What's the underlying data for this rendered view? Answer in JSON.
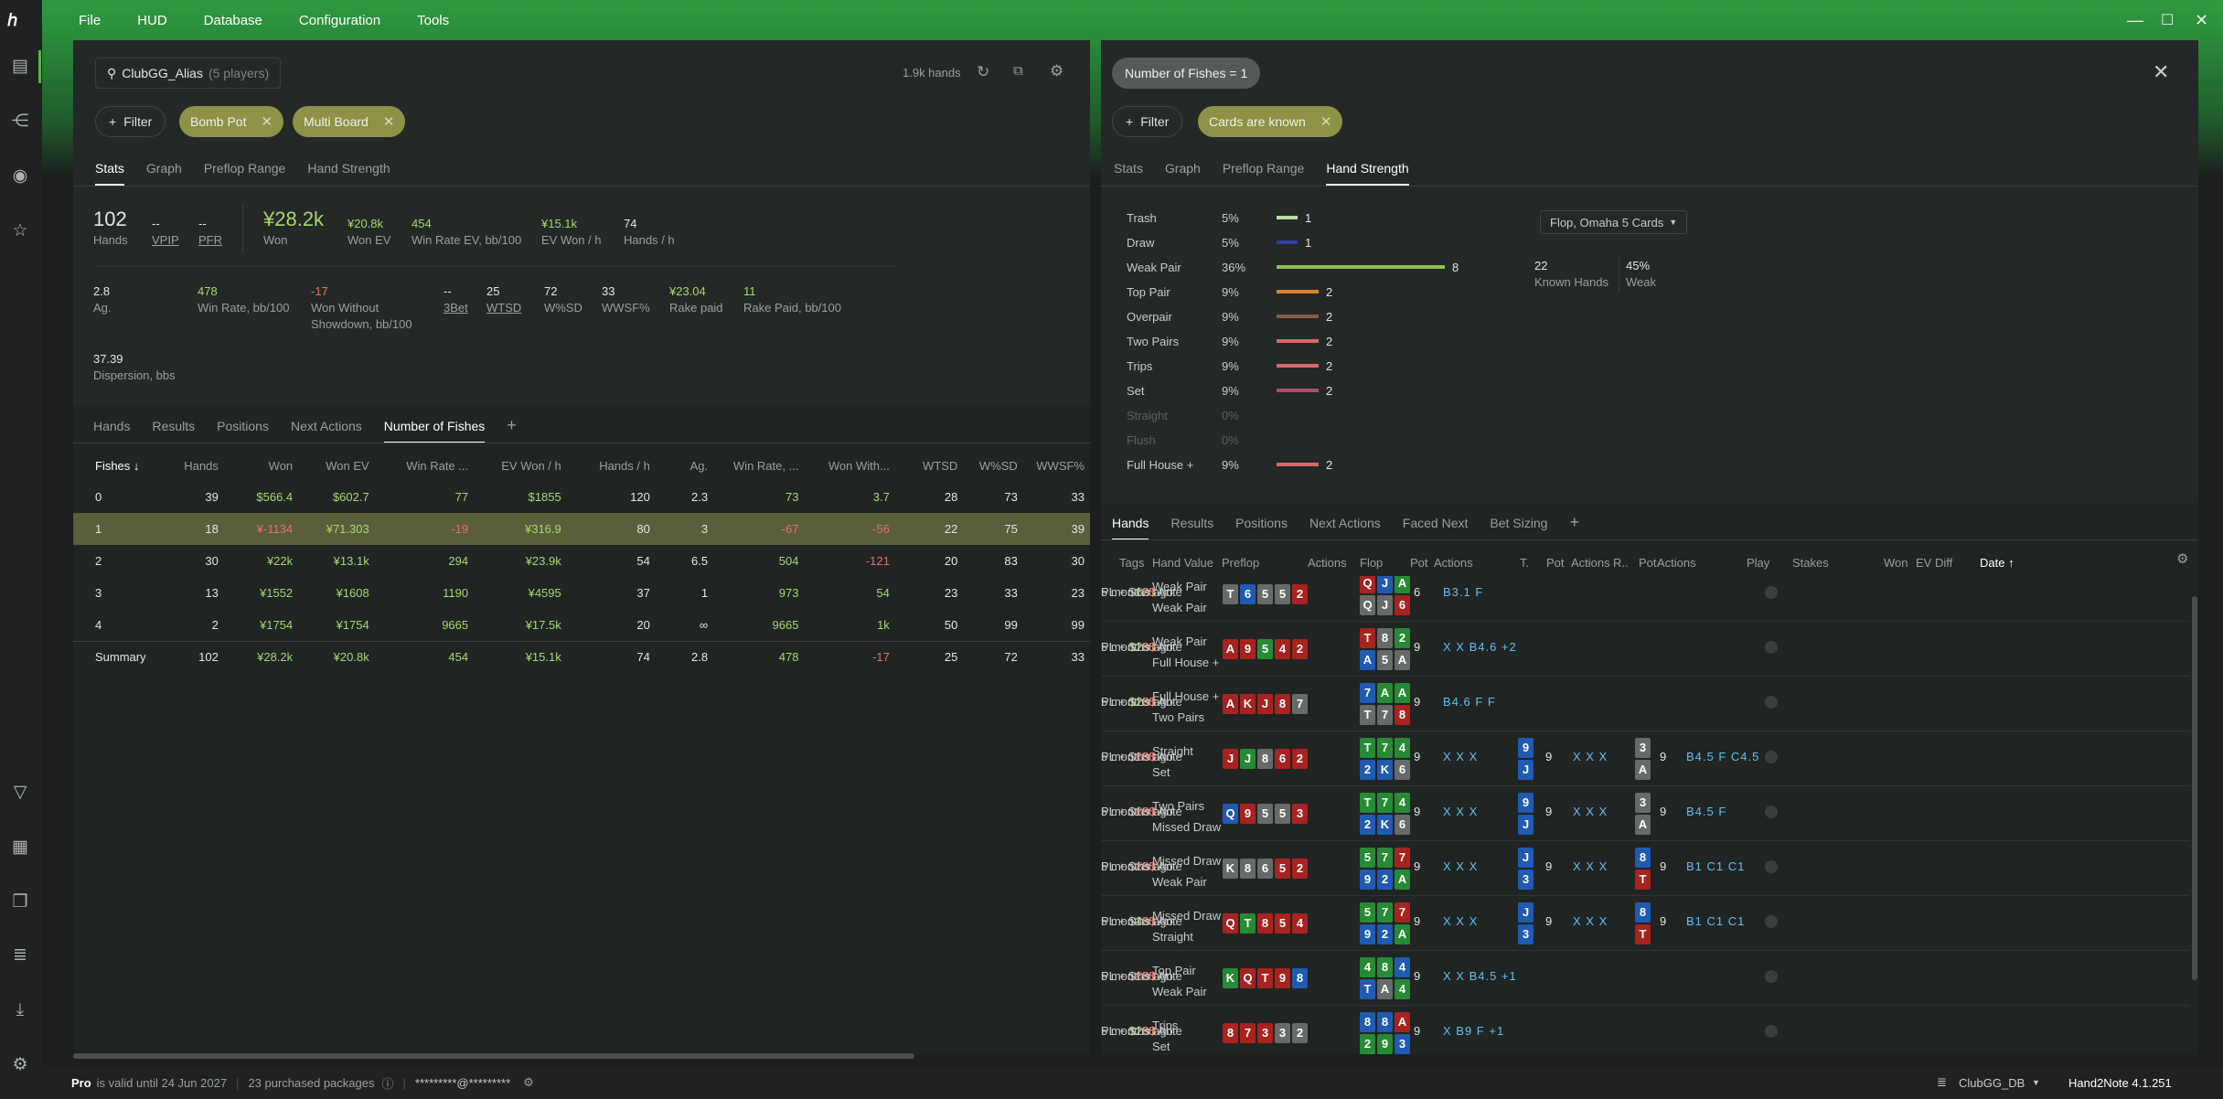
{
  "menu": [
    "File",
    "HUD",
    "Database",
    "Configuration",
    "Tools"
  ],
  "colors": {
    "accent": "#2b8e3c",
    "chip": "#8d9246",
    "positive": "#a8d86e",
    "negative": "#e4726b"
  },
  "left": {
    "player": "ClubGG_Alias",
    "player_count": "(5 players)",
    "hands_count": "1.9k hands",
    "filter_label": "Filter",
    "chips": [
      "Bomb Pot",
      "Multi Board"
    ],
    "tabs": [
      "Stats",
      "Graph",
      "Preflop Range",
      "Hand Strength"
    ],
    "stats1": {
      "hands_v": "102",
      "hands_l": "Hands",
      "vpip_v": "--",
      "vpip_l": "VPIP",
      "pfr_v": "--",
      "pfr_l": "PFR",
      "won_v": "¥28.2k",
      "won_l": "Won",
      "wonev_v": "¥20.8k",
      "wonev_l": "Won EV",
      "wrev_v": "454",
      "wrev_l": "Win Rate EV, bb/100",
      "evwon_v": "¥15.1k",
      "evwon_l": "EV Won / h",
      "hph_v": "74",
      "hph_l": "Hands / h"
    },
    "stats2": {
      "ag_v": "2.8",
      "ag_l": "Ag.",
      "wr_v": "478",
      "wr_l": "Win Rate, bb/100",
      "wwsd_v": "-17",
      "wwsd_l1": "Won Without",
      "wwsd_l2": "Showdown, bb/100",
      "bet3_v": "--",
      "bet3_l": "3Bet",
      "wtsd_v": "25",
      "wtsd_l": "WTSD",
      "wsd_v": "72",
      "wsd_l": "W%SD",
      "wwsf_v": "33",
      "wwsf_l": "WWSF%",
      "rake_v": "¥23.04",
      "rake_l": "Rake paid",
      "rakebb_v": "11",
      "rakebb_l": "Rake Paid, bb/100"
    },
    "stats3": {
      "disp_v": "37.39",
      "disp_l": "Dispersion, bbs"
    },
    "tabs2": [
      "Hands",
      "Results",
      "Positions",
      "Next Actions",
      "Number of Fishes"
    ],
    "table": {
      "headers": [
        "Fishes ↓",
        "Hands",
        "Won",
        "Won EV",
        "Win Rate ...",
        "EV Won / h",
        "Hands / h",
        "Ag.",
        "Win Rate, ...",
        "Won With...",
        "WTSD",
        "W%SD",
        "WWSF%"
      ],
      "rows": [
        [
          "0",
          "39",
          "$566.4",
          "$602.7",
          "77",
          "$1855",
          "120",
          "2.3",
          "73",
          "3.7",
          "28",
          "73",
          "33"
        ],
        [
          "1",
          "18",
          "¥-1134",
          "¥71.303",
          "-19",
          "¥316.9",
          "80",
          "3",
          "-67",
          "-56",
          "22",
          "75",
          "39"
        ],
        [
          "2",
          "30",
          "¥22k",
          "¥13.1k",
          "294",
          "¥23.9k",
          "54",
          "6.5",
          "504",
          "-121",
          "20",
          "83",
          "30"
        ],
        [
          "3",
          "13",
          "¥1552",
          "¥1608",
          "1190",
          "¥4595",
          "37",
          "1",
          "973",
          "54",
          "23",
          "33",
          "23"
        ],
        [
          "4",
          "2",
          "¥1754",
          "¥1754",
          "9665",
          "¥17.5k",
          "20",
          "∞",
          "9665",
          "1k",
          "50",
          "99",
          "99"
        ],
        [
          "Summary",
          "102",
          "¥28.2k",
          "¥20.8k",
          "454",
          "¥15.1k",
          "74",
          "2.8",
          "478",
          "-17",
          "25",
          "72",
          "33"
        ]
      ]
    }
  },
  "right": {
    "top_chip": "Number of Fishes = 1",
    "filter_label": "Filter",
    "chip": "Cards are known",
    "tabs": [
      "Stats",
      "Graph",
      "Preflop Range",
      "Hand Strength"
    ],
    "hs": [
      {
        "name": "Trash",
        "pct": "5%",
        "count": "1",
        "frac": 0.125,
        "color": "#b8dca8"
      },
      {
        "name": "Draw",
        "pct": "5%",
        "count": "1",
        "frac": 0.125,
        "color": "#2e3f9e"
      },
      {
        "name": "Weak Pair",
        "pct": "36%",
        "count": "8",
        "frac": 1,
        "color": "#8bc34a"
      },
      {
        "name": "Top Pair",
        "pct": "9%",
        "count": "2",
        "frac": 0.25,
        "color": "#d9822b"
      },
      {
        "name": "Overpair",
        "pct": "9%",
        "count": "2",
        "frac": 0.25,
        "color": "#8a5a50"
      },
      {
        "name": "Two Pairs",
        "pct": "9%",
        "count": "2",
        "frac": 0.25,
        "color": "#d46a6a"
      },
      {
        "name": "Trips",
        "pct": "9%",
        "count": "2",
        "frac": 0.25,
        "color": "#d46a6a"
      },
      {
        "name": "Set",
        "pct": "9%",
        "count": "2",
        "frac": 0.25,
        "color": "#b04a7a"
      },
      {
        "name": "Straight",
        "pct": "0%",
        "count": "",
        "frac": 0,
        "color": "#666"
      },
      {
        "name": "Flush",
        "pct": "0%",
        "count": "",
        "frac": 0,
        "color": "#666"
      },
      {
        "name": "Full House +",
        "pct": "9%",
        "count": "2",
        "frac": 0.25,
        "color": "#d46a6a"
      }
    ],
    "dropdown": "Flop, Omaha 5 Cards",
    "known_v": "22",
    "known_l": "Known Hands",
    "weak_v": "45%",
    "weak_l": "Weak",
    "tabs2": [
      "Hands",
      "Results",
      "Positions",
      "Next Actions",
      "Faced Next",
      "Bet Sizing"
    ],
    "hand_headers": [
      "Tags",
      "Hand Value",
      "Preflop",
      "Actions",
      "Flop",
      "Pot",
      "Actions",
      "T.",
      "Pot",
      "Actions",
      "R..",
      "Pot",
      "Actions",
      "Play",
      "Stakes",
      "Won",
      "EV Diff",
      "Date ↑"
    ],
    "hands": [
      {
        "hv": [
          "Weak Pair",
          "Weak Pair"
        ],
        "pre": [
          [
            "T",
            "x"
          ],
          [
            "6",
            "b"
          ],
          [
            "5",
            "x"
          ],
          [
            "5",
            "x"
          ],
          [
            "2",
            "r"
          ]
        ],
        "flop": [
          [
            "Q",
            "r"
          ],
          [
            "J",
            "b"
          ],
          [
            "A",
            "g"
          ],
          [
            "Q",
            "x"
          ],
          [
            "J",
            "x"
          ],
          [
            "6",
            "r"
          ]
        ],
        "pot": "6",
        "fa": "B3.1 F",
        "ta": "",
        "tp": "",
        "turn": [],
        "ra": "",
        "rp": "",
        "river": [],
        "stake": "PL + $120 Ante",
        "won": "60$",
        "wonc": "g",
        "ev": "0$",
        "date": "5 months ago"
      },
      {
        "hv": [
          "Weak Pair",
          "Full House +"
        ],
        "pre": [
          [
            "A",
            "r"
          ],
          [
            "9",
            "r"
          ],
          [
            "5",
            "g"
          ],
          [
            "4",
            "r"
          ],
          [
            "2",
            "r"
          ]
        ],
        "flop": [
          [
            "T",
            "r"
          ],
          [
            "8",
            "x"
          ],
          [
            "2",
            "g"
          ],
          [
            "A",
            "b"
          ],
          [
            "5",
            "x"
          ],
          [
            "A",
            "x"
          ]
        ],
        "pot": "9",
        "fa": "X X B4.6 +2",
        "ta": "",
        "tp": "",
        "turn": [],
        "ra": "",
        "rp": "",
        "river": [],
        "stake": "PL + $180 Ante",
        "won": "120$",
        "wonc": "g",
        "ev": "0$",
        "date": "5 months ago"
      },
      {
        "hv": [
          "Full House +",
          "Two Pairs"
        ],
        "pre": [
          [
            "A",
            "r"
          ],
          [
            "K",
            "r"
          ],
          [
            "J",
            "r"
          ],
          [
            "8",
            "r"
          ],
          [
            "7",
            "x"
          ]
        ],
        "flop": [
          [
            "7",
            "b"
          ],
          [
            "A",
            "g"
          ],
          [
            "A",
            "g"
          ],
          [
            "T",
            "x"
          ],
          [
            "7",
            "x"
          ],
          [
            "8",
            "r"
          ]
        ],
        "pot": "9",
        "fa": "B4.6 F F",
        "ta": "",
        "tp": "",
        "turn": [],
        "ra": "",
        "rp": "",
        "river": [],
        "stake": "PL + $180 Ante",
        "won": "120$",
        "wonc": "g",
        "ev": "0$",
        "date": "5 months ago"
      },
      {
        "hv": [
          "Straight",
          "Set"
        ],
        "pre": [
          [
            "J",
            "r"
          ],
          [
            "J",
            "g"
          ],
          [
            "8",
            "x"
          ],
          [
            "6",
            "r"
          ],
          [
            "2",
            "r"
          ]
        ],
        "flop": [
          [
            "T",
            "g"
          ],
          [
            "7",
            "g"
          ],
          [
            "4",
            "g"
          ],
          [
            "2",
            "b"
          ],
          [
            "K",
            "b"
          ],
          [
            "6",
            "x"
          ]
        ],
        "pot": "9",
        "fa": "X X X",
        "turn": [
          [
            "9",
            "b"
          ],
          [
            "J",
            "b"
          ]
        ],
        "tp": "9",
        "ta": "X X X",
        "river": [
          [
            "3",
            "x"
          ],
          [
            "A",
            "x"
          ]
        ],
        "rp": "9",
        "ra": "B4.5 F C4.5",
        "stake": "PL + $180 Ante",
        "won": "-60$",
        "wonc": "r",
        "ev": "0$",
        "date": "5 months ago"
      },
      {
        "hv": [
          "Two Pairs",
          "Missed Draw"
        ],
        "pre": [
          [
            "Q",
            "b"
          ],
          [
            "9",
            "r"
          ],
          [
            "5",
            "x"
          ],
          [
            "5",
            "x"
          ],
          [
            "3",
            "r"
          ]
        ],
        "flop": [
          [
            "T",
            "g"
          ],
          [
            "7",
            "g"
          ],
          [
            "4",
            "g"
          ],
          [
            "2",
            "b"
          ],
          [
            "K",
            "b"
          ],
          [
            "6",
            "x"
          ]
        ],
        "pot": "9",
        "fa": "X X X",
        "turn": [
          [
            "9",
            "b"
          ],
          [
            "J",
            "b"
          ]
        ],
        "tp": "9",
        "ta": "X X X",
        "river": [
          [
            "3",
            "x"
          ],
          [
            "A",
            "x"
          ]
        ],
        "rp": "9",
        "ra": "B4.5 F",
        "stake": "PL + $180 Ante",
        "won": "-60$",
        "wonc": "r",
        "ev": "0$",
        "date": "5 months ago"
      },
      {
        "hv": [
          "Missed Draw",
          "Weak Pair"
        ],
        "pre": [
          [
            "K",
            "x"
          ],
          [
            "8",
            "x"
          ],
          [
            "6",
            "x"
          ],
          [
            "5",
            "r"
          ],
          [
            "2",
            "r"
          ]
        ],
        "flop": [
          [
            "5",
            "g"
          ],
          [
            "7",
            "g"
          ],
          [
            "7",
            "r"
          ],
          [
            "9",
            "b"
          ],
          [
            "2",
            "b"
          ],
          [
            "A",
            "g"
          ]
        ],
        "pot": "9",
        "fa": "X X X",
        "turn": [
          [
            "J",
            "b"
          ],
          [
            "3",
            "b"
          ]
        ],
        "tp": "9",
        "ta": "X X X",
        "river": [
          [
            "8",
            "b"
          ],
          [
            "T",
            "r"
          ]
        ],
        "rp": "9",
        "ra": "B1 C1 C1",
        "stake": "PL + $180 Ante",
        "won": "-80$",
        "wonc": "r",
        "ev": "0$",
        "date": "5 months ago"
      },
      {
        "hv": [
          "Missed Draw",
          "Straight"
        ],
        "pre": [
          [
            "Q",
            "r"
          ],
          [
            "T",
            "g"
          ],
          [
            "8",
            "r"
          ],
          [
            "5",
            "r"
          ],
          [
            "4",
            "r"
          ]
        ],
        "flop": [
          [
            "5",
            "g"
          ],
          [
            "7",
            "g"
          ],
          [
            "7",
            "r"
          ],
          [
            "9",
            "b"
          ],
          [
            "2",
            "b"
          ],
          [
            "A",
            "g"
          ]
        ],
        "pot": "9",
        "fa": "X X X",
        "turn": [
          [
            "J",
            "b"
          ],
          [
            "3",
            "b"
          ]
        ],
        "tp": "9",
        "ta": "X X X",
        "river": [
          [
            "8",
            "b"
          ],
          [
            "T",
            "r"
          ]
        ],
        "rp": "9",
        "ra": "B1 C1 C1",
        "stake": "PL + $180 Ante",
        "won": "40$",
        "wonc": "g",
        "ev": "0$",
        "date": "5 months ago"
      },
      {
        "hv": [
          "Top Pair",
          "Weak Pair"
        ],
        "pre": [
          [
            "K",
            "g"
          ],
          [
            "Q",
            "r"
          ],
          [
            "T",
            "r"
          ],
          [
            "9",
            "r"
          ],
          [
            "8",
            "b"
          ]
        ],
        "flop": [
          [
            "4",
            "g"
          ],
          [
            "8",
            "g"
          ],
          [
            "4",
            "b"
          ],
          [
            "T",
            "b"
          ],
          [
            "A",
            "x"
          ],
          [
            "4",
            "g"
          ]
        ],
        "pot": "9",
        "fa": "X X B4.5 +1",
        "ta": "",
        "tp": "",
        "turn": [],
        "ra": "",
        "rp": "",
        "river": [],
        "stake": "PL + $180 Ante",
        "won": "-60$",
        "wonc": "r",
        "ev": "0$",
        "date": "5 months ago"
      },
      {
        "hv": [
          "Trips",
          "Set"
        ],
        "pre": [
          [
            "8",
            "r"
          ],
          [
            "7",
            "r"
          ],
          [
            "3",
            "r"
          ],
          [
            "3",
            "x"
          ],
          [
            "2",
            "x"
          ]
        ],
        "flop": [
          [
            "8",
            "b"
          ],
          [
            "8",
            "b"
          ],
          [
            "A",
            "r"
          ],
          [
            "2",
            "g"
          ],
          [
            "9",
            "g"
          ],
          [
            "3",
            "b"
          ]
        ],
        "pot": "9",
        "fa": "X B9 F +1",
        "ta": "",
        "tp": "",
        "turn": [],
        "ra": "",
        "rp": "",
        "river": [],
        "stake": "PL + $180 Ante",
        "won": "120$",
        "wonc": "g",
        "ev": "0$",
        "date": "5 months ago"
      }
    ]
  },
  "status": {
    "pro": "Pro",
    "valid": "is valid until 24 Jun 2027",
    "packages": "23 purchased packages",
    "email": "*********@*********",
    "db": "ClubGG_DB",
    "version": "Hand2Note 4.1.251"
  }
}
